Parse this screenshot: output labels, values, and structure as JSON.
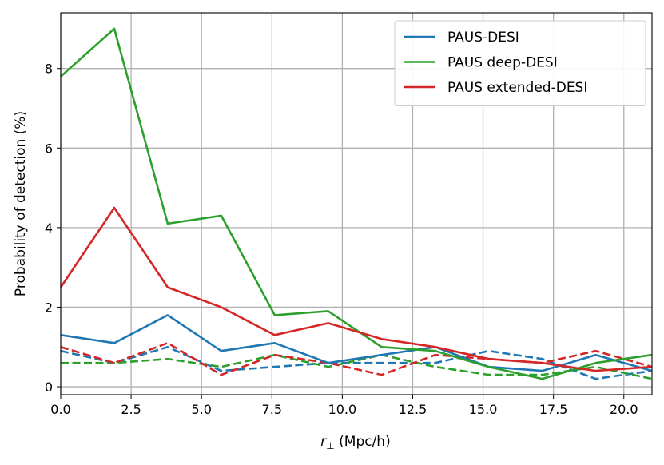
{
  "chart_data": {
    "type": "line",
    "xlabel_math": "r",
    "xlabel_sub": "⊥",
    "xlabel_rest": " (Mpc/h)",
    "ylabel": "Probability of detection (%)",
    "xlim": [
      0,
      21
    ],
    "ylim": [
      -0.2,
      9.4
    ],
    "grid": true,
    "legend_position": "top-right",
    "xticks": [
      "0.0",
      "2.5",
      "5.0",
      "7.5",
      "10.0",
      "12.5",
      "15.0",
      "17.5",
      "20.0"
    ],
    "xtick_values": [
      0,
      2.5,
      5,
      7.5,
      10,
      12.5,
      15,
      17.5,
      20
    ],
    "yticks": [
      "0",
      "2",
      "4",
      "6",
      "8"
    ],
    "ytick_values": [
      0,
      2,
      4,
      6,
      8
    ],
    "x": [
      0.0,
      1.9,
      3.8,
      5.7,
      7.6,
      9.5,
      11.4,
      13.3,
      15.2,
      17.1,
      19.0,
      21.0
    ],
    "series": [
      {
        "name": "PAUS-DESI",
        "color": "#1f77b4",
        "style": "solid",
        "values": [
          1.3,
          1.1,
          1.8,
          0.9,
          1.1,
          0.6,
          0.8,
          1.0,
          0.5,
          0.4,
          0.8,
          0.4
        ]
      },
      {
        "name": "PAUS deep-DESI",
        "color": "#2ca02c",
        "style": "solid",
        "values": [
          7.8,
          9.0,
          4.1,
          4.3,
          1.8,
          1.9,
          1.0,
          0.9,
          0.5,
          0.2,
          0.6,
          0.8
        ]
      },
      {
        "name": "PAUS extended-DESI",
        "color": "#d62728",
        "style": "solid",
        "values": [
          2.5,
          4.5,
          2.5,
          2.0,
          1.3,
          1.6,
          1.2,
          1.0,
          0.7,
          0.6,
          0.4,
          0.5
        ]
      },
      {
        "name": "",
        "color": "#1f77b4",
        "style": "dashed",
        "values": [
          0.9,
          0.6,
          1.0,
          0.4,
          0.5,
          0.6,
          0.6,
          0.6,
          0.9,
          0.7,
          0.2,
          0.4
        ]
      },
      {
        "name": "",
        "color": "#2ca02c",
        "style": "dashed",
        "values": [
          0.6,
          0.6,
          0.7,
          0.5,
          0.8,
          0.5,
          0.8,
          0.5,
          0.3,
          0.3,
          0.5,
          0.2
        ]
      },
      {
        "name": "",
        "color": "#d62728",
        "style": "dashed",
        "values": [
          1.0,
          0.6,
          1.1,
          0.3,
          0.8,
          0.6,
          0.3,
          0.8,
          0.7,
          0.6,
          0.9,
          0.5
        ]
      }
    ]
  }
}
